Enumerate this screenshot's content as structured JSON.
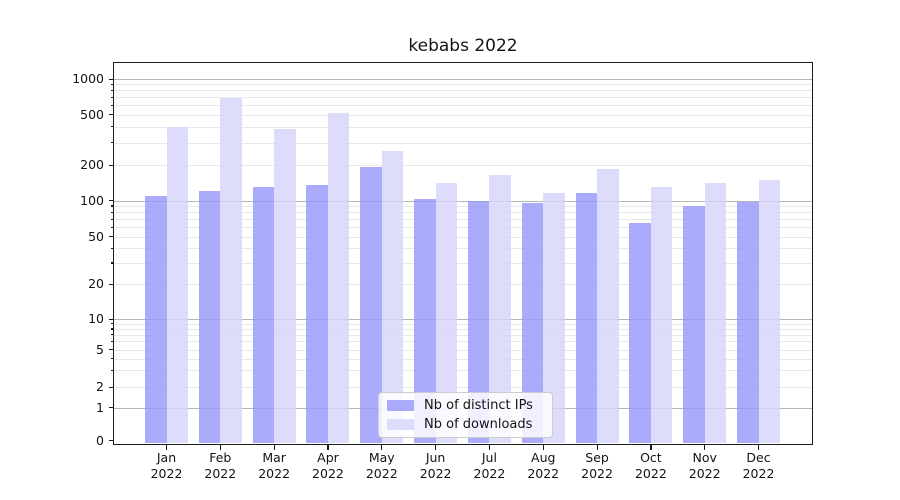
{
  "title": "kebabs 2022",
  "legend": {
    "items": [
      {
        "label": "Nb of distinct IPs",
        "series_key": "ips"
      },
      {
        "label": "Nb of downloads",
        "series_key": "downloads"
      }
    ]
  },
  "colors": {
    "ips_bar": "rgba(150,150,250,0.8)",
    "downloads_bar": "rgba(212,212,250,0.8)",
    "ips_bar_hex": "#ababfa",
    "downloads_bar_hex": "#dcdcfa",
    "major_grid": "#b5b5b5",
    "minor_grid": "#e9e9e9",
    "axis": "#1a1a1a",
    "legend_border": "#cccccc"
  },
  "chart_data": {
    "type": "bar",
    "title": "kebabs 2022",
    "categories": [
      "Jan 2022",
      "Feb 2022",
      "Mar 2022",
      "Apr 2022",
      "May 2022",
      "Jun 2022",
      "Jul 2022",
      "Aug 2022",
      "Sep 2022",
      "Oct 2022",
      "Nov 2022",
      "Dec 2022"
    ],
    "series": [
      {
        "name": "Nb of distinct IPs",
        "values": [
          110,
          120,
          130,
          135,
          192,
          103,
          100,
          95,
          115,
          65,
          90,
          97
        ]
      },
      {
        "name": "Nb of downloads",
        "values": [
          400,
          690,
          385,
          510,
          260,
          140,
          165,
          115,
          185,
          130,
          140,
          150
        ]
      }
    ],
    "yscale": "symlog",
    "yticks": [
      0,
      1,
      2,
      5,
      10,
      20,
      50,
      100,
      200,
      500,
      1000
    ],
    "ylim": [
      0,
      1400
    ],
    "xlabel": "",
    "ylabel": "",
    "grid": true,
    "legend_position": "lower center"
  }
}
